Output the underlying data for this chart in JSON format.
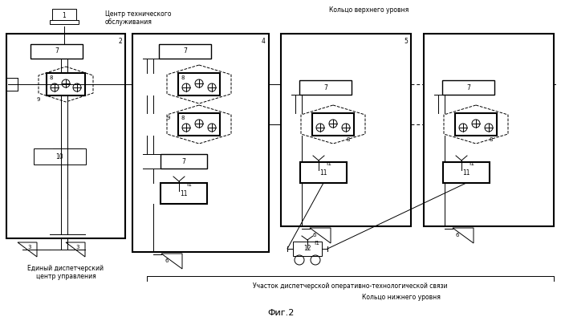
{
  "title": "Фиг.2",
  "label_top_right": "Кольцо верхнего уровня",
  "label_bottom_right": "Кольцо нижнего уровня",
  "label_bottom_center": "Участок диспетчерской оперативно-технологической связи",
  "label_laptop": "Центр технического\nобслуживания",
  "label_edc": "Единый диспетчерский\nцентр управления"
}
